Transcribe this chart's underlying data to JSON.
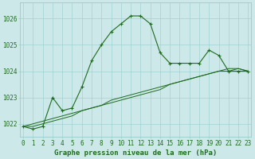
{
  "title": "Graphe pression niveau de la mer (hPa)",
  "hours": [
    0,
    1,
    2,
    3,
    4,
    5,
    6,
    7,
    8,
    9,
    10,
    11,
    12,
    13,
    14,
    15,
    16,
    17,
    18,
    19,
    20,
    21,
    22,
    23
  ],
  "line_main": [
    1021.9,
    1021.8,
    1021.9,
    1023.0,
    1022.5,
    1022.6,
    1023.4,
    1024.4,
    1025.0,
    1025.5,
    1025.8,
    1026.1,
    1026.1,
    1025.8,
    1024.7,
    1024.3,
    1024.3,
    1024.3,
    1024.3,
    1024.8,
    1024.6,
    1024.0,
    1024.0,
    1024.0
  ],
  "line_flat1": [
    1021.9,
    1021.9,
    1022.0,
    1022.1,
    1022.2,
    1022.3,
    1022.5,
    1022.6,
    1022.7,
    1022.9,
    1023.0,
    1023.1,
    1023.2,
    1023.3,
    1023.4,
    1023.5,
    1023.6,
    1023.7,
    1023.8,
    1023.9,
    1024.0,
    1024.0,
    1024.1,
    1024.0
  ],
  "line_flat2": [
    1021.9,
    1022.0,
    1022.1,
    1022.2,
    1022.3,
    1022.4,
    1022.5,
    1022.6,
    1022.7,
    1022.8,
    1022.9,
    1023.0,
    1023.1,
    1023.2,
    1023.3,
    1023.5,
    1023.6,
    1023.7,
    1023.8,
    1023.9,
    1024.0,
    1024.1,
    1024.1,
    1024.0
  ],
  "line_color": "#1f6b1f",
  "bg_color": "#cce8e8",
  "grid_color": "#99cccc",
  "ylim": [
    1021.5,
    1026.6
  ],
  "yticks": [
    1022,
    1023,
    1024,
    1025,
    1026
  ],
  "xtick_labels": [
    "0",
    "1",
    "2",
    "3",
    "4",
    "5",
    "6",
    "7",
    "8",
    "9",
    "10",
    "11",
    "12",
    "13",
    "14",
    "15",
    "16",
    "17",
    "18",
    "19",
    "20",
    "21",
    "22",
    "23"
  ],
  "title_fontsize": 6.5,
  "tick_fontsize": 5.5
}
